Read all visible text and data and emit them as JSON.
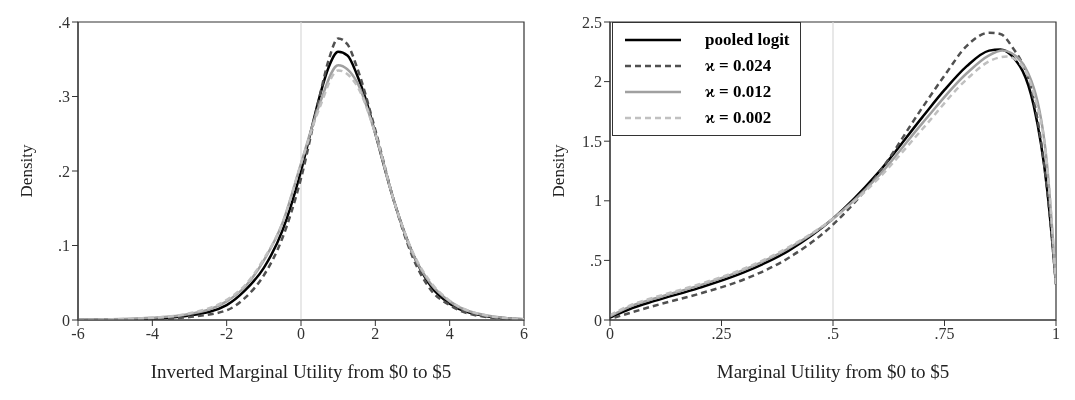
{
  "chart_data": [
    {
      "type": "line",
      "xlabel": "Inverted Marginal Utility from $0 to $5",
      "ylabel": "Density",
      "xlim": [
        -6,
        6
      ],
      "ylim": [
        0,
        0.4
      ],
      "xticks": [
        -6,
        -4,
        -2,
        0,
        2,
        4,
        6
      ],
      "yticks": [
        0,
        {
          "value": 0.1,
          "label": ".1"
        },
        {
          "value": 0.2,
          "label": ".2"
        },
        {
          "value": 0.3,
          "label": ".3"
        },
        {
          "value": 0.4,
          "label": ".4"
        }
      ],
      "grid": false,
      "ref_lines": [
        {
          "axis": "x",
          "value": 0,
          "color": "#d9d9d9"
        }
      ],
      "series": [
        {
          "color": "#000000",
          "line_style": "solid",
          "x": [
            -6,
            -4,
            -3,
            -2,
            -1.5,
            -1,
            -0.5,
            0,
            0.25,
            0.5,
            0.75,
            1,
            1.25,
            1.5,
            1.75,
            2,
            2.5,
            3,
            3.5,
            4,
            5,
            6
          ],
          "values": [
            0,
            0.002,
            0.006,
            0.02,
            0.04,
            0.07,
            0.12,
            0.2,
            0.25,
            0.3,
            0.34,
            0.36,
            0.355,
            0.33,
            0.295,
            0.25,
            0.16,
            0.09,
            0.045,
            0.022,
            0.005,
            0.001
          ]
        },
        {
          "color": "#505050",
          "line_style": "dashed",
          "x": [
            -6,
            -4,
            -3,
            -2,
            -1.5,
            -1,
            -0.5,
            0,
            0.5,
            0.75,
            1,
            1.25,
            1.5,
            2,
            2.5,
            3,
            3.5,
            4,
            5,
            6
          ],
          "values": [
            0,
            0.001,
            0.004,
            0.013,
            0.03,
            0.06,
            0.11,
            0.19,
            0.3,
            0.35,
            0.378,
            0.37,
            0.34,
            0.255,
            0.16,
            0.085,
            0.04,
            0.02,
            0.004,
            0.001
          ]
        },
        {
          "color": "#a0a0a0",
          "line_style": "solid",
          "x": [
            -6,
            -4,
            -3,
            -2,
            -1.5,
            -1,
            -0.5,
            0,
            0.5,
            1,
            1.5,
            2,
            2.5,
            3,
            3.5,
            4,
            5,
            6
          ],
          "values": [
            0,
            0.003,
            0.008,
            0.025,
            0.045,
            0.08,
            0.13,
            0.21,
            0.29,
            0.342,
            0.32,
            0.25,
            0.16,
            0.09,
            0.048,
            0.025,
            0.006,
            0.001
          ]
        },
        {
          "color": "#c0c0c0",
          "line_style": "dashed",
          "x": [
            -6,
            -4,
            -3,
            -2,
            -1.5,
            -1,
            -0.5,
            0,
            0.5,
            1,
            1.5,
            2,
            2.5,
            3,
            3.5,
            4,
            5,
            6
          ],
          "values": [
            0,
            0.003,
            0.009,
            0.027,
            0.047,
            0.082,
            0.13,
            0.21,
            0.285,
            0.335,
            0.315,
            0.25,
            0.16,
            0.092,
            0.05,
            0.026,
            0.006,
            0.001
          ]
        }
      ]
    },
    {
      "type": "line",
      "xlabel": "Marginal Utility from $0 to $5",
      "ylabel": "Density",
      "xlim": [
        0,
        1
      ],
      "ylim": [
        0,
        2.5
      ],
      "xticks": [
        0,
        {
          "value": 0.25,
          "label": ".25"
        },
        {
          "value": 0.5,
          "label": ".5"
        },
        {
          "value": 0.75,
          "label": ".75"
        },
        1
      ],
      "yticks": [
        0,
        {
          "value": 0.5,
          "label": ".5"
        },
        1,
        1.5,
        2,
        2.5
      ],
      "grid": false,
      "legend": "top left",
      "ref_lines": [
        {
          "axis": "x",
          "value": 0.5,
          "color": "#d9d9d9"
        }
      ],
      "series": [
        {
          "name": "pooled logit",
          "color": "#000000",
          "line_style": "solid",
          "x": [
            0,
            0.05,
            0.1,
            0.2,
            0.3,
            0.4,
            0.5,
            0.6,
            0.7,
            0.75,
            0.8,
            0.85,
            0.875,
            0.9,
            0.95,
            0.98,
            1
          ],
          "values": [
            0.02,
            0.1,
            0.16,
            0.27,
            0.4,
            0.58,
            0.85,
            1.23,
            1.7,
            1.93,
            2.13,
            2.26,
            2.27,
            2.22,
            1.8,
            1.1,
            0.3
          ]
        },
        {
          "name": "ϰ = 0.024",
          "color": "#505050",
          "line_style": "dashed",
          "x": [
            0.01,
            0.1,
            0.2,
            0.3,
            0.4,
            0.5,
            0.6,
            0.7,
            0.75,
            0.8,
            0.85,
            0.875,
            0.9,
            0.95,
            0.98,
            1
          ],
          "values": [
            0.02,
            0.12,
            0.22,
            0.34,
            0.52,
            0.8,
            1.22,
            1.78,
            2.05,
            2.3,
            2.41,
            2.4,
            2.3,
            1.85,
            1.1,
            0.3
          ]
        },
        {
          "name": "ϰ = 0.012",
          "color": "#a0a0a0",
          "line_style": "solid",
          "x": [
            0,
            0.05,
            0.1,
            0.2,
            0.3,
            0.4,
            0.5,
            0.6,
            0.7,
            0.8,
            0.85,
            0.88,
            0.9,
            0.95,
            0.98,
            1
          ],
          "values": [
            0.03,
            0.12,
            0.18,
            0.29,
            0.42,
            0.6,
            0.85,
            1.2,
            1.65,
            2.07,
            2.22,
            2.26,
            2.24,
            1.95,
            1.3,
            0.3
          ]
        },
        {
          "name": "ϰ = 0.002",
          "color": "#c0c0c0",
          "line_style": "dashed",
          "x": [
            0,
            0.05,
            0.1,
            0.2,
            0.3,
            0.4,
            0.5,
            0.6,
            0.7,
            0.8,
            0.85,
            0.89,
            0.92,
            0.95,
            0.98,
            1
          ],
          "values": [
            0.04,
            0.13,
            0.19,
            0.3,
            0.43,
            0.61,
            0.85,
            1.18,
            1.6,
            2.02,
            2.17,
            2.21,
            2.15,
            1.9,
            1.3,
            0.3
          ]
        }
      ]
    }
  ]
}
